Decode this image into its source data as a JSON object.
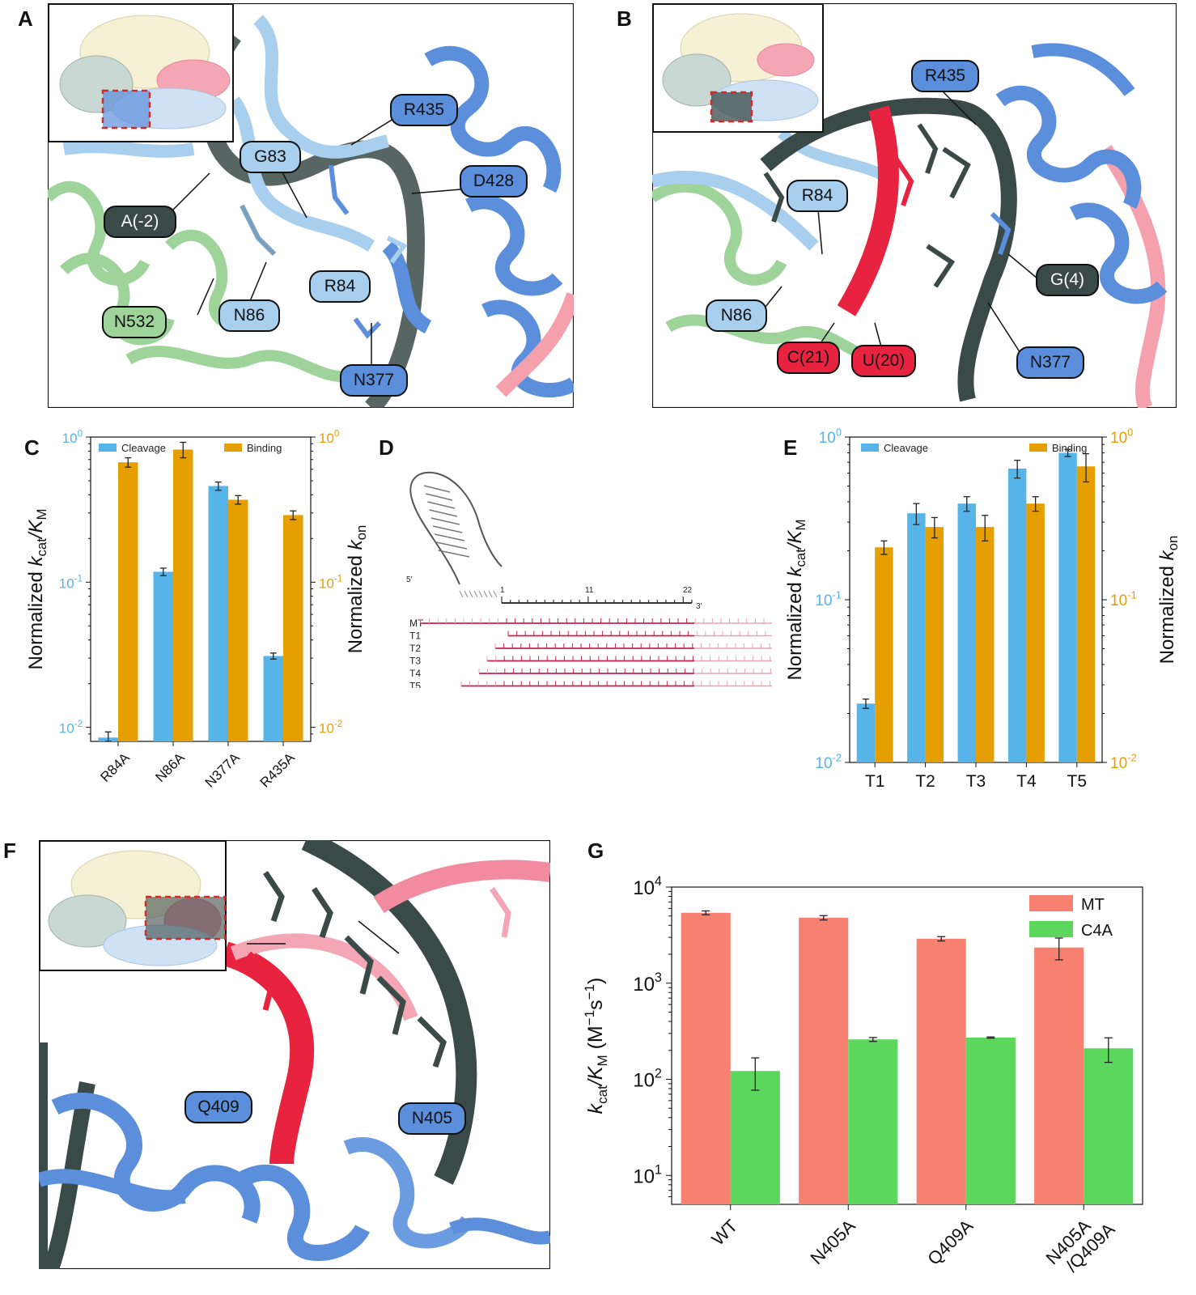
{
  "panels": {
    "A": {
      "letter": "A",
      "labels": {
        "r435": "R435",
        "g83": "G83",
        "d428": "D428",
        "a_m2": "A(-2)",
        "r84": "R84",
        "n532": "N532",
        "n86": "N86",
        "n377": "N377"
      }
    },
    "B": {
      "letter": "B",
      "labels": {
        "r435": "R435",
        "r84": "R84",
        "g4": "G(4)",
        "n86": "N86",
        "c21": "C(21)",
        "u20": "U(20)",
        "n377": "N377"
      }
    },
    "C": {
      "letter": "C"
    },
    "D": {
      "letter": "D",
      "five_prime": "5'",
      "three_prime": "3'",
      "positions": [
        "1",
        "11",
        "22"
      ],
      "rows": [
        "MT",
        "T1",
        "T2",
        "T3",
        "T4",
        "T5"
      ]
    },
    "E": {
      "letter": "E"
    },
    "F": {
      "letter": "F",
      "labels": {
        "q409": "Q409",
        "n405": "N405"
      }
    },
    "G": {
      "letter": "G"
    }
  },
  "colors": {
    "cleavage": "#56b4e9",
    "binding": "#e69f00",
    "mt": "#f88070",
    "c4a": "#5cd65c",
    "protein_light": "#a8cfee",
    "protein_blue": "#5b8fdc",
    "rna_red": "#e8233f",
    "dna_dark": "#3a4a48",
    "green_domain": "#9ed49a"
  },
  "chart_data": [
    {
      "id": "C",
      "type": "bar",
      "scale": "log",
      "categories": [
        "R84A",
        "N86A",
        "N377A",
        "R435A"
      ],
      "series": [
        {
          "name": "Cleavage",
          "values": [
            0.0085,
            0.118,
            0.46,
            0.031
          ],
          "err": [
            0.0008,
            0.007,
            0.03,
            0.0015
          ]
        },
        {
          "name": "Binding",
          "values": [
            0.67,
            0.82,
            0.37,
            0.29
          ],
          "err": [
            0.05,
            0.1,
            0.025,
            0.02
          ]
        }
      ],
      "ylabel_left": "Normalized kcat/KM",
      "ylabel_right": "Normalized kon",
      "ylim": [
        0.008,
        1.0
      ],
      "left_ticks": {
        "base": [
          "10",
          "10",
          "10"
        ],
        "exp": [
          "-2",
          "-1",
          "0"
        ]
      },
      "right_ticks": {
        "base": [
          "10",
          "10",
          "10"
        ],
        "exp": [
          "-2",
          "-1",
          "0"
        ]
      },
      "legend": "top"
    },
    {
      "id": "E",
      "type": "bar",
      "scale": "log",
      "categories": [
        "T1",
        "T2",
        "T3",
        "T4",
        "T5"
      ],
      "series": [
        {
          "name": "Cleavage",
          "values": [
            0.023,
            0.34,
            0.39,
            0.64,
            0.8
          ],
          "err": [
            0.0015,
            0.05,
            0.04,
            0.08,
            0.04
          ]
        },
        {
          "name": "Binding",
          "values": [
            0.21,
            0.28,
            0.28,
            0.39,
            0.66
          ],
          "err": [
            0.02,
            0.04,
            0.05,
            0.04,
            0.13
          ]
        }
      ],
      "ylabel_left": "Normalized kcat/KM",
      "ylabel_right": "Normalized kon",
      "ylim": [
        0.01,
        1.0
      ],
      "left_ticks": {
        "base": [
          "10",
          "10",
          "10"
        ],
        "exp": [
          "-2",
          "-1",
          "0"
        ]
      },
      "right_ticks": {
        "base": [
          "10",
          "10",
          "10"
        ],
        "exp": [
          "-2",
          "-1",
          "0"
        ]
      },
      "legend": "top"
    },
    {
      "id": "G",
      "type": "bar",
      "scale": "log",
      "categories": [
        "WT",
        "N405A",
        "Q409A",
        "N405A\n/Q409A"
      ],
      "series": [
        {
          "name": "MT",
          "values": [
            5400,
            4800,
            2900,
            2350
          ],
          "err": [
            250,
            250,
            150,
            600
          ]
        },
        {
          "name": "C4A",
          "values": [
            122,
            260,
            272,
            210
          ],
          "err": [
            45,
            12,
            4,
            60
          ]
        }
      ],
      "ylabel": "kcat/KM (M-1s-1)",
      "ylim": [
        5,
        10000
      ],
      "ticks": {
        "base": [
          "10",
          "10",
          "10",
          "10"
        ],
        "exp": [
          "1",
          "2",
          "3",
          "4"
        ]
      },
      "legend": "top-right"
    }
  ]
}
